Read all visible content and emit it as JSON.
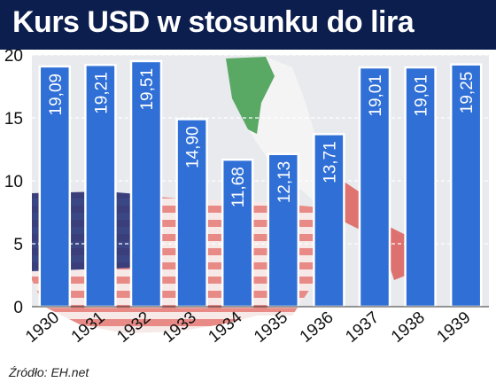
{
  "header": {
    "title": "Kurs USD w stosunku do lira"
  },
  "source": "Źródło: EH.net",
  "colors": {
    "header_bg": "#0c1e4d",
    "bar_fill": "#2f6fd6",
    "bar_stroke": "#ffffff",
    "value_text": "#ffffff",
    "axis_text": "#111111",
    "background_italy_green": "#3d9a4a",
    "background_usa_red": "#d9534f",
    "background_usa_blue": "#27357a"
  },
  "chart_data": {
    "type": "bar",
    "categories": [
      "1930",
      "1931",
      "1932",
      "1933",
      "1934",
      "1935",
      "1936",
      "1937",
      "1938",
      "1939"
    ],
    "values": [
      19.09,
      19.21,
      19.51,
      14.9,
      11.68,
      12.13,
      13.71,
      19.01,
      19.01,
      19.25
    ],
    "value_labels": [
      "19,09",
      "19,21",
      "19,51",
      "14,90",
      "11,68",
      "12,13",
      "13,71",
      "19,01",
      "19,01",
      "19,25"
    ],
    "y_ticks": [
      0,
      5,
      10,
      15,
      20
    ],
    "ylim": [
      0,
      20
    ],
    "grid": "horizontal dashed",
    "title": "Kurs USD w stosunku do lira",
    "xlabel": "",
    "ylabel": ""
  }
}
